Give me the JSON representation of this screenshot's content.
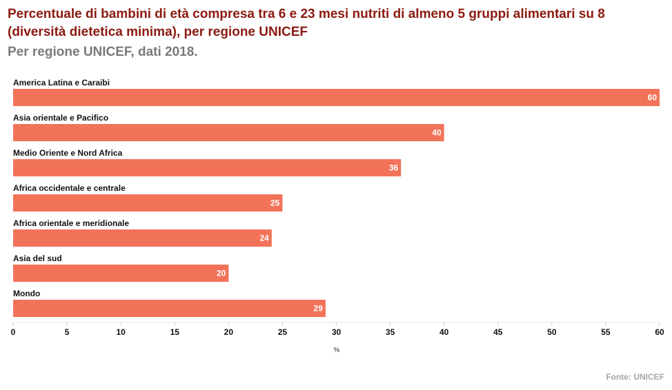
{
  "chart_data": {
    "type": "bar",
    "orientation": "horizontal",
    "title": "Percentuale di bambini di età compresa tra 6 e 23 mesi nutriti di almeno 5 gruppi alimentari su 8 (diversità dietetica minima), per regione UNICEF",
    "subtitle": "Per regione UNICEF, dati 2018.",
    "categories": [
      "America Latina e Caraibi",
      "Asia orientale e Pacifico",
      "Medio Oriente e Nord Africa",
      "Africa occidentale e centrale",
      "Africa orientale e meridionale",
      "Asia del sud",
      "Mondo"
    ],
    "values": [
      60,
      40,
      36,
      25,
      24,
      20,
      29
    ],
    "xlabel": "%",
    "xlim": [
      0,
      60
    ],
    "xticks": [
      0,
      5,
      10,
      15,
      20,
      25,
      30,
      35,
      40,
      45,
      50,
      55,
      60
    ],
    "bar_color": "#f2735a",
    "grid": false,
    "data_labels": true
  },
  "source": "Fonte: UNICEF"
}
